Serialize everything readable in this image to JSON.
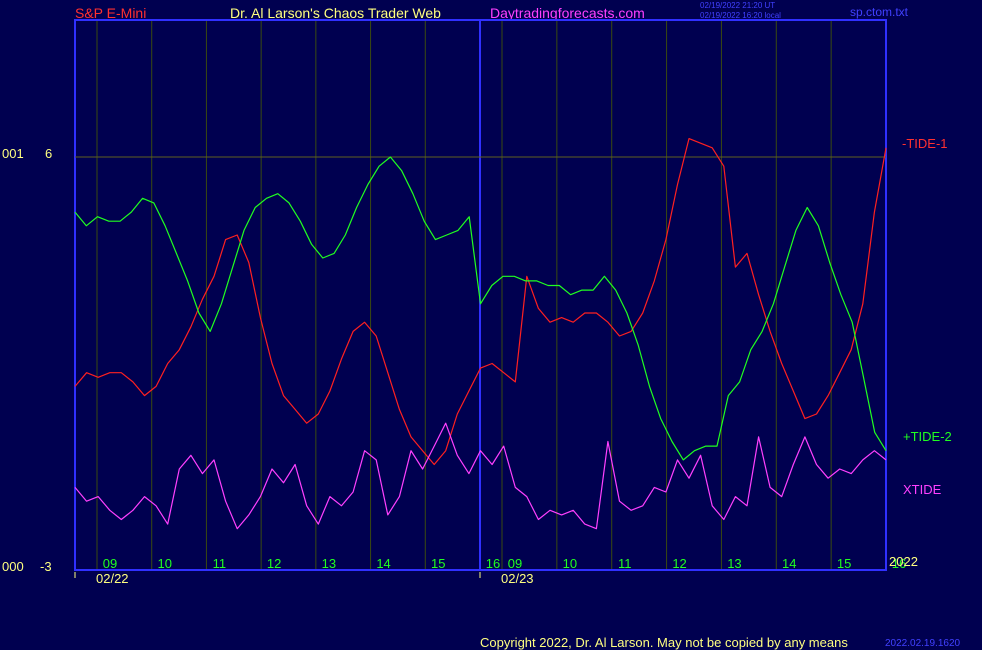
{
  "header": {
    "symbol": "S&P E-Mini",
    "title": "Dr. Al Larson's Chaos Trader Web",
    "site": "Daytradingforecasts.com",
    "stamp_ut": "02/19/2022 21:20 UT",
    "stamp_local": "02/19/2022 16:20 local",
    "file": "sp.ctom.txt"
  },
  "footer": {
    "copyright": "Copyright 2022, Dr. Al Larson. May not be copied by any means",
    "code": "2022.02.19.1620"
  },
  "colors": {
    "background": "#000050",
    "frame": "#3030ff",
    "tide1": "#ff2020",
    "tide2": "#20ff20",
    "xtide": "#ff40ff",
    "hour_labels": "#20ff20",
    "text_yellow": "#ffff80"
  },
  "chart_data": {
    "type": "line",
    "y_axis": {
      "top_label": "6",
      "bottom_label": "-3",
      "top_prefix": "001",
      "bottom_prefix": "000",
      "ylim": [
        -3,
        6
      ]
    },
    "x_axis": {
      "hour_ticks": [
        "09",
        "10",
        "11",
        "12",
        "13",
        "14",
        "15",
        "16",
        "09",
        "10",
        "11",
        "12",
        "13",
        "14",
        "15",
        "16"
      ],
      "day_labels": [
        "02/22",
        "02/23"
      ],
      "year_label": "2022"
    },
    "series": [
      {
        "name": "-TIDE-1",
        "color": "#ff2020",
        "values": [
          1.0,
          1.3,
          1.2,
          1.3,
          1.3,
          1.1,
          0.8,
          1.0,
          1.5,
          1.8,
          2.3,
          2.9,
          3.4,
          4.2,
          4.3,
          3.7,
          2.5,
          1.5,
          0.8,
          0.5,
          0.2,
          0.4,
          0.9,
          1.6,
          2.2,
          2.4,
          2.1,
          1.3,
          0.5,
          -0.1,
          -0.4,
          -0.7,
          -0.4,
          0.4,
          0.9,
          1.4,
          1.5,
          1.3,
          1.1,
          3.4,
          2.7,
          2.4,
          2.5,
          2.4,
          2.6,
          2.6,
          2.4,
          2.1,
          2.2,
          2.6,
          3.3,
          4.2,
          5.4,
          6.4,
          6.3,
          6.2,
          5.8,
          3.6,
          3.9,
          3.0,
          2.2,
          1.5,
          0.9,
          0.3,
          0.4,
          0.8,
          1.3,
          1.8,
          2.8,
          4.8,
          6.2
        ]
      },
      {
        "name": "+TIDE-2",
        "color": "#20ff20",
        "values": [
          4.8,
          4.5,
          4.7,
          4.6,
          4.6,
          4.8,
          5.1,
          5.0,
          4.5,
          3.9,
          3.3,
          2.6,
          2.2,
          2.8,
          3.6,
          4.4,
          4.9,
          5.1,
          5.2,
          5.0,
          4.6,
          4.1,
          3.8,
          3.9,
          4.3,
          4.9,
          5.4,
          5.8,
          6.0,
          5.7,
          5.2,
          4.6,
          4.2,
          4.3,
          4.4,
          4.7,
          2.8,
          3.2,
          3.4,
          3.4,
          3.3,
          3.3,
          3.2,
          3.2,
          3.0,
          3.1,
          3.1,
          3.4,
          3.1,
          2.6,
          1.9,
          1.0,
          0.3,
          -0.2,
          -0.6,
          -0.4,
          -0.3,
          -0.3,
          0.8,
          1.1,
          1.8,
          2.2,
          2.8,
          3.6,
          4.4,
          4.9,
          4.5,
          3.7,
          3.0,
          2.4,
          1.2,
          0.0,
          -0.4
        ]
      },
      {
        "name": "XTIDE",
        "color": "#ff40ff",
        "values": [
          -1.2,
          -1.5,
          -1.4,
          -1.7,
          -1.9,
          -1.7,
          -1.4,
          -1.6,
          -2.0,
          -0.8,
          -0.5,
          -0.9,
          -0.6,
          -1.5,
          -2.1,
          -1.8,
          -1.4,
          -0.8,
          -1.1,
          -0.7,
          -1.6,
          -2.0,
          -1.4,
          -1.6,
          -1.3,
          -0.4,
          -0.6,
          -1.8,
          -1.4,
          -0.4,
          -0.8,
          -0.3,
          0.2,
          -0.5,
          -0.9,
          -0.4,
          -0.7,
          -0.3,
          -1.2,
          -1.4,
          -1.9,
          -1.7,
          -1.8,
          -1.7,
          -2.0,
          -2.1,
          -0.2,
          -1.5,
          -1.7,
          -1.6,
          -1.2,
          -1.3,
          -0.6,
          -1.0,
          -0.5,
          -1.6,
          -1.9,
          -1.4,
          -1.6,
          -0.1,
          -1.2,
          -1.4,
          -0.7,
          -0.1,
          -0.7,
          -1.0,
          -0.8,
          -0.9,
          -0.6,
          -0.4,
          -0.6
        ]
      }
    ]
  }
}
